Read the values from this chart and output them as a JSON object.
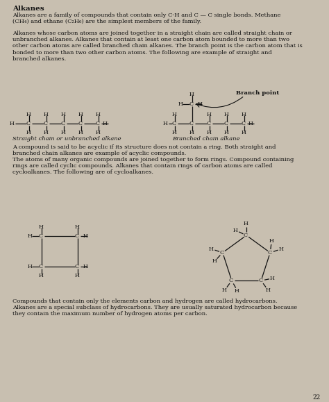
{
  "bg_color": "#c8bfb0",
  "text_color": "#1a1a1a",
  "page_number": "22",
  "title": "Alkanes",
  "para1": "Alkanes are a family of compounds that contain only C-H and C — C single bonds. Methane\n(CH₄) and ethane (C₂H₆) are the simplest members of the family.",
  "para2": "Alkanes whose carbon atoms are joined together in a straight chain are called straight chain or\nunbranched alkanes. Alkanes that contain at least one carbon atom bounded to more than two\nother carbon atoms are called branched chain alkanes. The branch point is the carbon atom that is\nbonded to more than two other carbon atoms. The following are example of straight and\nbranched alkanes.",
  "para3": "A compound is said to be acyclic if its structure does not contain a ring. Both straight and\nbranched chain alkanes are example of acyclic compounds.",
  "para4": "The atoms of many organic compounds are joined together to form rings. Compound containing\nrings are called cyclic compounds. Alkanes that contain rings of carbon atoms are called\ncycloalkanes. The following are of cycloalkanes.",
  "para5": "Compounds that contain only the elements carbon and hydrogen are called hydrocarbons.\nAlkanes are a special subclass of hydrocarbons. They are usually saturated hydrocarbon because\nthey contain the maximum number of hydrogen atoms per carbon.",
  "label_straight": "Straight chain or unbranched alkane",
  "label_branched": "Branched chain alkane",
  "label_branch_point": "Branch point"
}
